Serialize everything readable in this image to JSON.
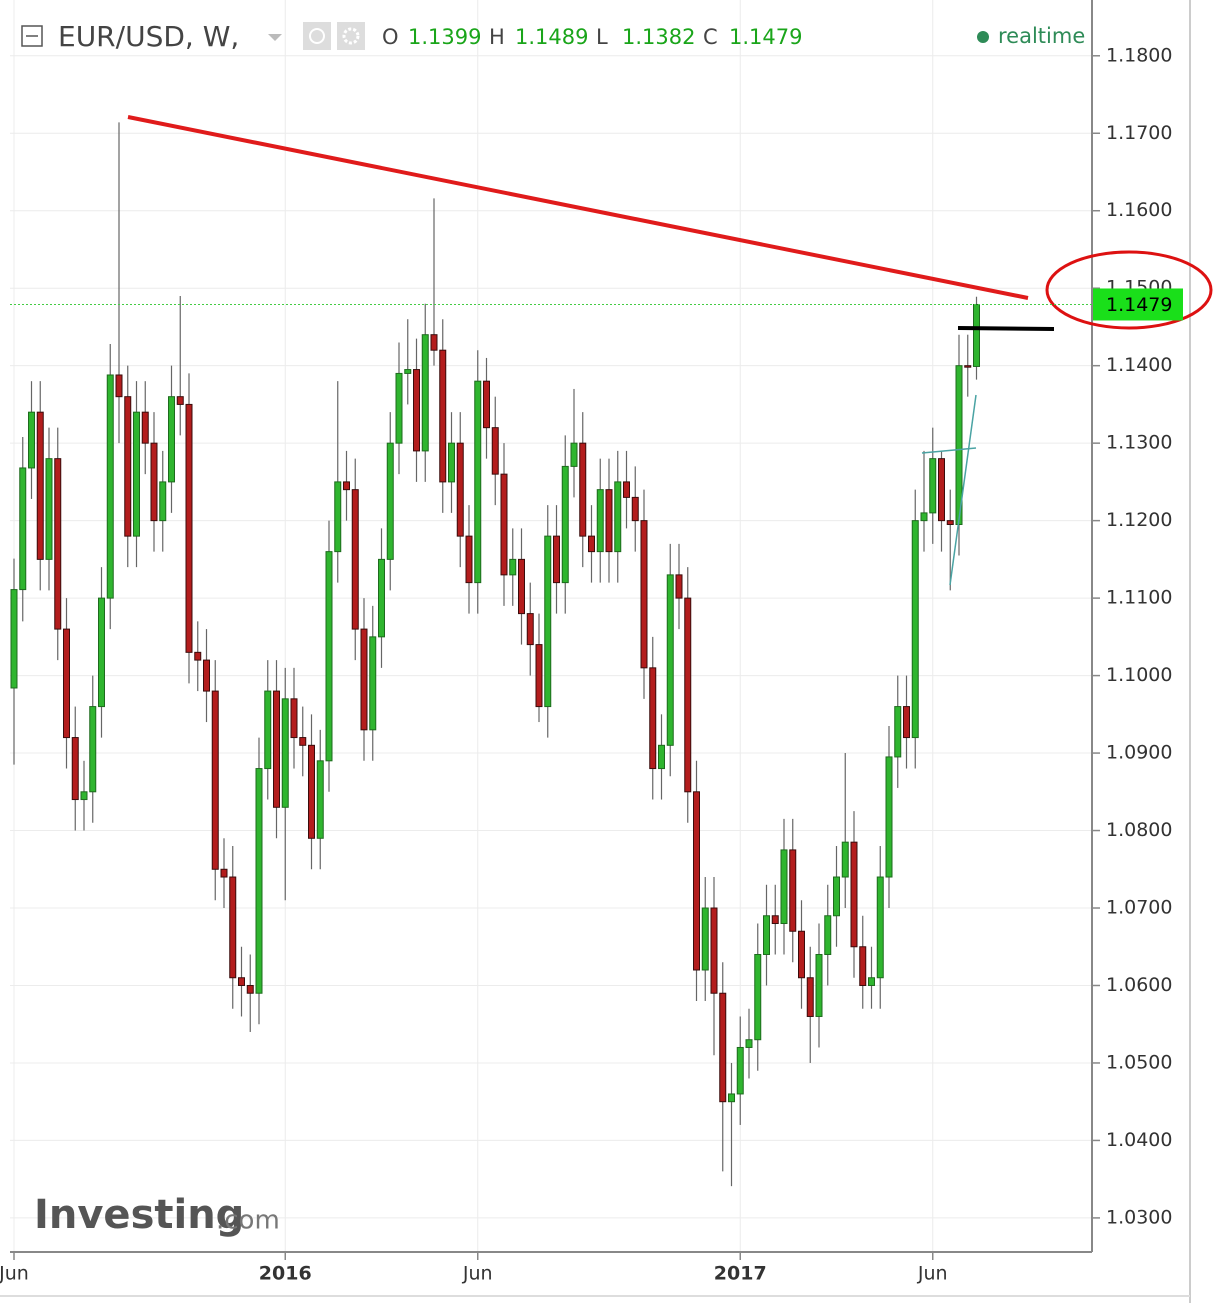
{
  "chart_data": {
    "type": "candlestick",
    "title": "EUR/USD, W,",
    "ohlc_legend": [
      {
        "label": "O",
        "value": 1.1399
      },
      {
        "label": "H",
        "value": 1.1489
      },
      {
        "label": "L",
        "value": 1.1382
      },
      {
        "label": "C",
        "value": 1.1479
      }
    ],
    "status": "realtime",
    "watermark": [
      "Investing",
      ".com"
    ],
    "up_color": "#2fb52f",
    "down_color": "#b31d1d",
    "grid": true,
    "categories": [
      "Jun",
      null,
      null,
      null,
      null,
      null,
      null,
      null,
      null,
      null,
      null,
      null,
      null,
      null,
      null,
      null,
      null,
      null,
      null,
      null,
      null,
      null,
      null,
      null,
      null,
      null,
      null,
      null,
      null,
      null,
      null,
      "2016",
      null,
      null,
      null,
      null,
      null,
      null,
      null,
      null,
      null,
      null,
      null,
      null,
      null,
      null,
      null,
      null,
      null,
      null,
      null,
      null,
      null,
      "Jun",
      null,
      null,
      null,
      null,
      null,
      null,
      null,
      null,
      null,
      null,
      null,
      null,
      null,
      null,
      null,
      null,
      null,
      null,
      null,
      null,
      null,
      null,
      null,
      null,
      null,
      null,
      null,
      null,
      null,
      "2017",
      null,
      null,
      null,
      null,
      null,
      null,
      null,
      null,
      null,
      null,
      null,
      null,
      null,
      null,
      null,
      null,
      null,
      null,
      null,
      null,
      null,
      "Jun",
      null,
      null,
      null,
      null,
      null
    ],
    "open": [
      1.0984,
      1.1111,
      1.1268,
      1.134,
      1.115,
      1.128,
      1.106,
      1.092,
      1.084,
      1.085,
      1.096,
      1.11,
      1.1388,
      1.136,
      1.118,
      1.134,
      1.13,
      1.12,
      1.125,
      1.136,
      1.135,
      1.103,
      1.102,
      1.098,
      1.075,
      1.074,
      1.061,
      1.06,
      1.059,
      1.088,
      1.098,
      1.083,
      1.097,
      1.092,
      1.091,
      1.079,
      1.089,
      1.116,
      1.125,
      1.124,
      1.106,
      1.093,
      1.105,
      1.115,
      1.13,
      1.139,
      1.1395,
      1.129,
      1.144,
      1.142,
      1.125,
      1.13,
      1.118,
      1.112,
      1.138,
      1.132,
      1.126,
      1.113,
      1.115,
      1.108,
      1.104,
      1.096,
      1.118,
      1.112,
      1.127,
      1.13,
      1.118,
      1.116,
      1.124,
      1.116,
      1.125,
      1.123,
      1.12,
      1.101,
      1.088,
      1.091,
      1.113,
      1.11,
      1.085,
      1.062,
      1.07,
      1.059,
      1.045,
      1.046,
      1.052,
      1.053,
      1.064,
      1.069,
      1.068,
      1.0775,
      1.067,
      1.061,
      1.056,
      1.064,
      1.069,
      1.074,
      1.0785,
      1.065,
      1.06,
      1.061,
      1.074,
      1.0895,
      1.096,
      1.092,
      1.12,
      1.121,
      1.128,
      1.12,
      1.1195,
      1.14,
      1.1399
    ],
    "high": [
      1.1151,
      1.1308,
      1.138,
      1.138,
      1.132,
      1.132,
      1.11,
      1.096,
      1.089,
      1.1,
      1.114,
      1.1428,
      1.1714,
      1.14,
      1.138,
      1.138,
      1.134,
      1.129,
      1.14,
      1.149,
      1.139,
      1.107,
      1.106,
      1.102,
      1.079,
      1.078,
      1.065,
      1.064,
      1.092,
      1.102,
      1.102,
      1.101,
      1.101,
      1.096,
      1.095,
      1.093,
      1.12,
      1.138,
      1.129,
      1.128,
      1.11,
      1.109,
      1.119,
      1.134,
      1.143,
      1.146,
      1.1435,
      1.148,
      1.1616,
      1.146,
      1.134,
      1.134,
      1.122,
      1.142,
      1.141,
      1.136,
      1.13,
      1.119,
      1.119,
      1.112,
      1.108,
      1.122,
      1.122,
      1.131,
      1.137,
      1.134,
      1.122,
      1.128,
      1.128,
      1.129,
      1.129,
      1.127,
      1.124,
      1.105,
      1.095,
      1.117,
      1.117,
      1.114,
      1.089,
      1.074,
      1.074,
      1.063,
      1.05,
      1.056,
      1.057,
      1.068,
      1.073,
      1.073,
      1.0815,
      1.0815,
      1.071,
      1.065,
      1.068,
      1.073,
      1.078,
      1.09,
      1.0825,
      1.069,
      1.065,
      1.078,
      1.0935,
      1.1,
      1.1,
      1.124,
      1.129,
      1.132,
      1.129,
      1.124,
      1.144,
      1.144,
      1.1489
    ],
    "low": [
      1.0885,
      1.107,
      1.1228,
      1.111,
      1.111,
      1.102,
      1.088,
      1.08,
      1.08,
      1.081,
      1.092,
      1.106,
      1.13,
      1.114,
      1.114,
      1.126,
      1.116,
      1.116,
      1.121,
      1.131,
      1.099,
      1.098,
      1.094,
      1.071,
      1.07,
      1.057,
      1.056,
      1.054,
      1.055,
      1.084,
      1.079,
      1.071,
      1.088,
      1.087,
      1.075,
      1.075,
      1.085,
      1.112,
      1.12,
      1.102,
      1.089,
      1.089,
      1.101,
      1.111,
      1.126,
      1.135,
      1.125,
      1.125,
      1.14,
      1.121,
      1.121,
      1.114,
      1.108,
      1.108,
      1.128,
      1.122,
      1.109,
      1.109,
      1.104,
      1.1,
      1.094,
      1.092,
      1.108,
      1.108,
      1.123,
      1.114,
      1.112,
      1.112,
      1.112,
      1.112,
      1.119,
      1.116,
      1.097,
      1.084,
      1.084,
      1.087,
      1.106,
      1.081,
      1.058,
      1.058,
      1.051,
      1.036,
      1.0341,
      1.042,
      1.048,
      1.049,
      1.06,
      1.064,
      1.064,
      1.063,
      1.057,
      1.05,
      1.052,
      1.06,
      1.065,
      1.07,
      1.061,
      1.057,
      1.057,
      1.057,
      1.07,
      1.0855,
      1.088,
      1.088,
      1.116,
      1.117,
      1.116,
      1.111,
      1.1155,
      1.136,
      1.1382
    ],
    "close": [
      1.1111,
      1.1268,
      1.134,
      1.115,
      1.128,
      1.106,
      1.092,
      1.084,
      1.085,
      1.096,
      1.11,
      1.1388,
      1.136,
      1.118,
      1.134,
      1.13,
      1.12,
      1.125,
      1.136,
      1.135,
      1.103,
      1.102,
      1.098,
      1.075,
      1.074,
      1.061,
      1.06,
      1.059,
      1.088,
      1.098,
      1.083,
      1.097,
      1.092,
      1.091,
      1.079,
      1.089,
      1.116,
      1.125,
      1.124,
      1.106,
      1.093,
      1.105,
      1.115,
      1.13,
      1.139,
      1.1395,
      1.129,
      1.144,
      1.142,
      1.125,
      1.13,
      1.118,
      1.112,
      1.138,
      1.132,
      1.126,
      1.113,
      1.115,
      1.108,
      1.104,
      1.096,
      1.118,
      1.112,
      1.127,
      1.13,
      1.118,
      1.116,
      1.124,
      1.116,
      1.125,
      1.123,
      1.12,
      1.101,
      1.088,
      1.091,
      1.113,
      1.11,
      1.085,
      1.062,
      1.07,
      1.059,
      1.045,
      1.046,
      1.052,
      1.053,
      1.064,
      1.069,
      1.068,
      1.0775,
      1.067,
      1.061,
      1.056,
      1.064,
      1.069,
      1.074,
      1.0785,
      1.065,
      1.06,
      1.061,
      1.074,
      1.0895,
      1.096,
      1.092,
      1.12,
      1.121,
      1.128,
      1.12,
      1.1195,
      1.14,
      1.1399,
      1.1479
    ],
    "ylim": [
      1.0256,
      1.1872
    ],
    "yticks": [
      {
        "value": 1.03,
        "label": "1.0300"
      },
      {
        "value": 1.04,
        "label": "1.0400"
      },
      {
        "value": 1.05,
        "label": "1.0500"
      },
      {
        "value": 1.06,
        "label": "1.0600"
      },
      {
        "value": 1.07,
        "label": "1.0700"
      },
      {
        "value": 1.08,
        "label": "1.0800"
      },
      {
        "value": 1.09,
        "label": "1.0900"
      },
      {
        "value": 1.1,
        "label": "1.1000"
      },
      {
        "value": 1.11,
        "label": "1.1100"
      },
      {
        "value": 1.12,
        "label": "1.1200"
      },
      {
        "value": 1.13,
        "label": "1.1300"
      },
      {
        "value": 1.14,
        "label": "1.1400"
      },
      {
        "value": 1.15,
        "label": "1.1500"
      },
      {
        "value": 1.16,
        "label": "1.1600"
      },
      {
        "value": 1.17,
        "label": "1.1700"
      },
      {
        "value": 1.18,
        "label": "1.1800"
      }
    ]
  }
}
